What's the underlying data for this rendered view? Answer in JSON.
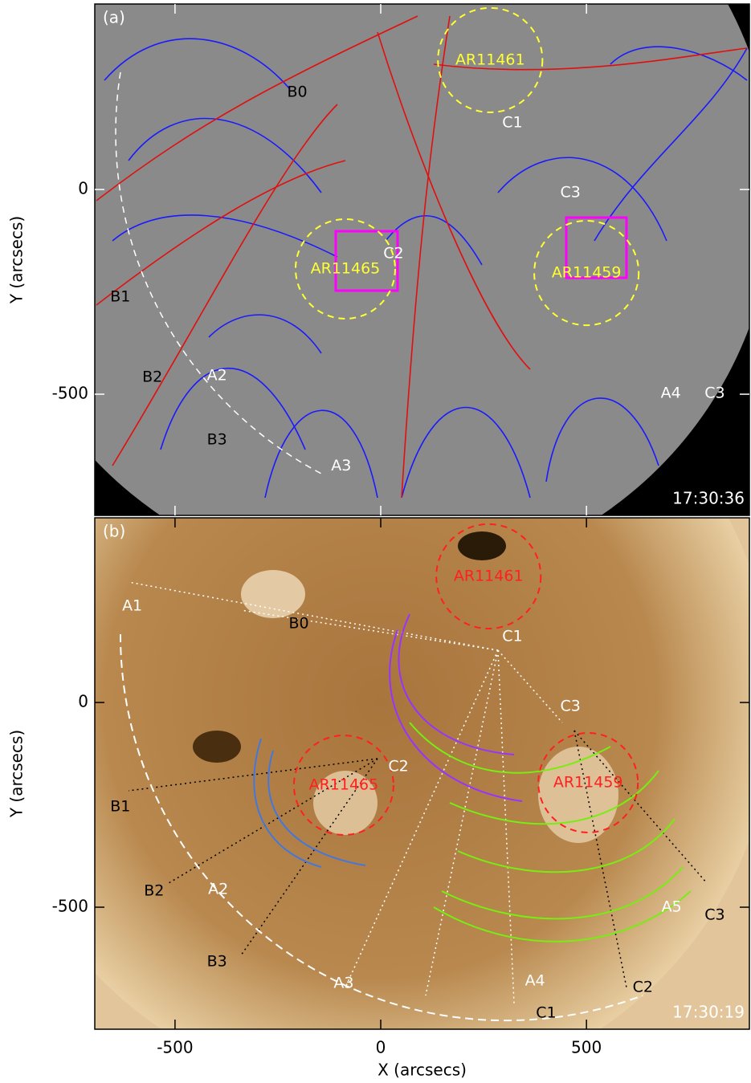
{
  "chart_data": [
    {
      "type": "image",
      "panel_label": "(a)",
      "time": "17:30:36",
      "ylabel": "Y (arcsecs)",
      "xlim": [
        -695,
        896
      ],
      "ylim": [
        -796,
        453
      ],
      "xticks": [
        -500,
        0,
        500
      ],
      "yticks": [
        0,
        -500
      ],
      "xtick_labels": false,
      "region_color": "#ffff33",
      "regions": [
        {
          "name": "AR11461",
          "x": 266,
          "y": 316,
          "r": 127
        },
        {
          "name": "AR11465",
          "x": -86,
          "y": -194,
          "r": 121
        },
        {
          "name": "AR11459",
          "x": 500,
          "y": -204,
          "r": 127
        }
      ],
      "annotations": [
        {
          "text": "C1",
          "x": 320,
          "y": 163,
          "color": "#ffffff"
        },
        {
          "text": "C2",
          "x": 31,
          "y": -157,
          "color": "#ffffff"
        },
        {
          "text": "C3",
          "x": 461,
          "y": -8,
          "color": "#ffffff"
        },
        {
          "text": "B0",
          "x": -203,
          "y": 237,
          "color": "#000000"
        },
        {
          "text": "B1",
          "x": -633,
          "y": -263,
          "color": "#000000"
        },
        {
          "text": "B2",
          "x": -555,
          "y": -459,
          "color": "#000000"
        },
        {
          "text": "B3",
          "x": -398,
          "y": -612,
          "color": "#000000"
        },
        {
          "text": "A2",
          "x": -398,
          "y": -455,
          "color": "#ffffff"
        },
        {
          "text": "A3",
          "x": -96,
          "y": -675,
          "color": "#ffffff"
        },
        {
          "text": "A4",
          "x": 705,
          "y": -498,
          "color": "#ffffff"
        },
        {
          "text": "C3",
          "x": 812,
          "y": -498,
          "color": "#ffffff"
        }
      ]
    },
    {
      "type": "image",
      "panel_label": "(b)",
      "time": "17:30:19",
      "ylabel": "Y (arcsecs)",
      "xlabel": "X (arcsecs)",
      "xlim": [
        -695,
        896
      ],
      "ylim": [
        -798,
        451
      ],
      "xticks": [
        -500,
        0,
        500
      ],
      "yticks": [
        0,
        -500
      ],
      "xtick_labels": true,
      "region_color": "#ff2020",
      "regions": [
        {
          "name": "AR11461",
          "x": 262,
          "y": 308,
          "r": 127
        },
        {
          "name": "AR11465",
          "x": -90,
          "y": -202,
          "r": 121
        },
        {
          "name": "AR11459",
          "x": 504,
          "y": -196,
          "r": 121
        }
      ],
      "annotations": [
        {
          "text": "C1",
          "x": 320,
          "y": 161,
          "color": "#ffffff"
        },
        {
          "text": "C2",
          "x": 43,
          "y": -157,
          "color": "#ffffff"
        },
        {
          "text": "C3",
          "x": 461,
          "y": -10,
          "color": "#ffffff"
        },
        {
          "text": "A1",
          "x": -604,
          "y": 235,
          "color": "#ffffff"
        },
        {
          "text": "A2",
          "x": -395,
          "y": -457,
          "color": "#ffffff"
        },
        {
          "text": "A3",
          "x": -90,
          "y": -686,
          "color": "#ffffff"
        },
        {
          "text": "A4",
          "x": 375,
          "y": -680,
          "color": "#ffffff"
        },
        {
          "text": "A5",
          "x": 707,
          "y": -500,
          "color": "#ffffff"
        },
        {
          "text": "B0",
          "x": -199,
          "y": 192,
          "color": "#000000"
        },
        {
          "text": "B1",
          "x": -633,
          "y": -255,
          "color": "#000000"
        },
        {
          "text": "B2",
          "x": -551,
          "y": -461,
          "color": "#000000"
        },
        {
          "text": "B3",
          "x": -398,
          "y": -633,
          "color": "#000000"
        },
        {
          "text": "C1",
          "x": 402,
          "y": -759,
          "color": "#000000"
        },
        {
          "text": "C2",
          "x": 637,
          "y": -696,
          "color": "#000000"
        },
        {
          "text": "C3",
          "x": 812,
          "y": -520,
          "color": "#000000"
        }
      ]
    }
  ]
}
